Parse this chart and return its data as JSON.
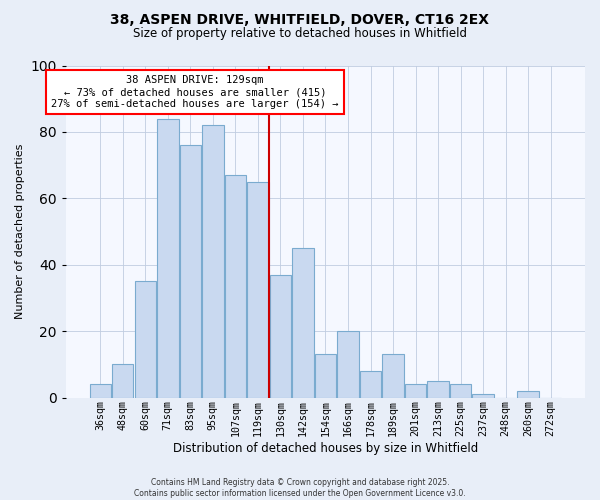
{
  "title": "38, ASPEN DRIVE, WHITFIELD, DOVER, CT16 2EX",
  "subtitle": "Size of property relative to detached houses in Whitfield",
  "xlabel": "Distribution of detached houses by size in Whitfield",
  "ylabel": "Number of detached properties",
  "bar_labels": [
    "36sqm",
    "48sqm",
    "60sqm",
    "71sqm",
    "83sqm",
    "95sqm",
    "107sqm",
    "119sqm",
    "130sqm",
    "142sqm",
    "154sqm",
    "166sqm",
    "178sqm",
    "189sqm",
    "201sqm",
    "213sqm",
    "225sqm",
    "237sqm",
    "248sqm",
    "260sqm",
    "272sqm"
  ],
  "bar_values": [
    4,
    10,
    35,
    84,
    76,
    82,
    67,
    65,
    37,
    45,
    13,
    20,
    8,
    13,
    4,
    5,
    4,
    1,
    0,
    2,
    0
  ],
  "bar_color": "#c9d9f0",
  "bar_edge_color": "#7aabcf",
  "vline_index": 8,
  "annotation_line1": "38 ASPEN DRIVE: 129sqm",
  "annotation_line2": "← 73% of detached houses are smaller (415)",
  "annotation_line3": "27% of semi-detached houses are larger (154) →",
  "vline_color": "#cc0000",
  "ylim": [
    0,
    100
  ],
  "footer_line1": "Contains HM Land Registry data © Crown copyright and database right 2025.",
  "footer_line2": "Contains public sector information licensed under the Open Government Licence v3.0.",
  "bg_color": "#e8eef8",
  "plot_bg_color": "#f5f8ff",
  "grid_color": "#c0cce0"
}
